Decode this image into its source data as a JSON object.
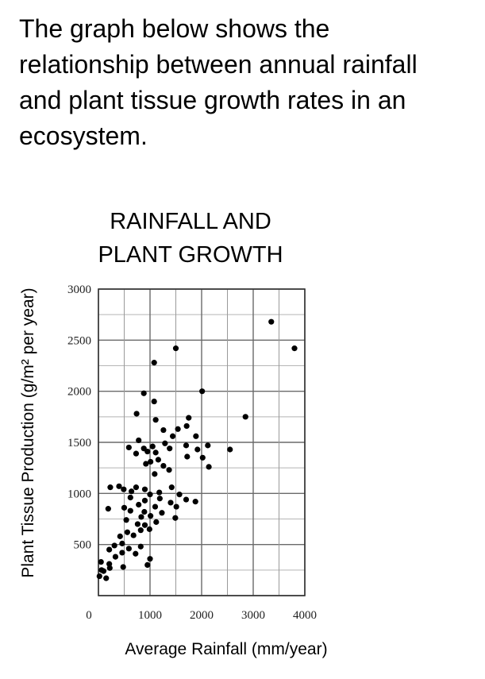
{
  "intro_text": "The graph below shows the relationship between annual rainfall and plant tissue growth rates in an ecosystem.",
  "chart_data": {
    "type": "scatter",
    "title_line1": "RAINFALL AND",
    "title_line2": "PLANT GROWTH",
    "xlabel": "Average Rainfall (mm/year)",
    "ylabel": "Plant Tissue Production (g/m² per year)",
    "xlim": [
      0,
      4000
    ],
    "ylim": [
      0,
      3000
    ],
    "x_ticks": [
      {
        "value": 0,
        "label": "0"
      },
      {
        "value": 1000,
        "label": "1000"
      },
      {
        "value": 2000,
        "label": "2000"
      },
      {
        "value": 3000,
        "label": "3000"
      },
      {
        "value": 4000,
        "label": "4000"
      }
    ],
    "y_ticks": [
      {
        "value": 500,
        "label": "500"
      },
      {
        "value": 1000,
        "label": "1000"
      },
      {
        "value": 1500,
        "label": "1500"
      },
      {
        "value": 2000,
        "label": "2000"
      },
      {
        "value": 2500,
        "label": "2500"
      },
      {
        "value": 3000,
        "label": "3000"
      }
    ],
    "grid": true,
    "dot_color": "#000000",
    "points": [
      [
        3350,
        2680
      ],
      [
        3800,
        2420
      ],
      [
        1500,
        2420
      ],
      [
        1080,
        2280
      ],
      [
        2010,
        2000
      ],
      [
        880,
        1980
      ],
      [
        1080,
        1900
      ],
      [
        2850,
        1750
      ],
      [
        740,
        1780
      ],
      [
        1750,
        1740
      ],
      [
        1110,
        1720
      ],
      [
        1260,
        1620
      ],
      [
        1540,
        1630
      ],
      [
        1710,
        1660
      ],
      [
        1890,
        1560
      ],
      [
        780,
        1520
      ],
      [
        1440,
        1560
      ],
      [
        2120,
        1470
      ],
      [
        2550,
        1430
      ],
      [
        1700,
        1470
      ],
      [
        1920,
        1430
      ],
      [
        590,
        1450
      ],
      [
        1290,
        1490
      ],
      [
        1050,
        1460
      ],
      [
        880,
        1440
      ],
      [
        1110,
        1400
      ],
      [
        1380,
        1440
      ],
      [
        950,
        1410
      ],
      [
        2020,
        1350
      ],
      [
        730,
        1390
      ],
      [
        1160,
        1330
      ],
      [
        1720,
        1360
      ],
      [
        2140,
        1260
      ],
      [
        1010,
        1310
      ],
      [
        920,
        1290
      ],
      [
        1260,
        1270
      ],
      [
        1370,
        1230
      ],
      [
        1090,
        1190
      ],
      [
        230,
        1060
      ],
      [
        400,
        1070
      ],
      [
        490,
        1040
      ],
      [
        640,
        1020
      ],
      [
        730,
        1060
      ],
      [
        900,
        1040
      ],
      [
        1180,
        1010
      ],
      [
        1000,
        990
      ],
      [
        1420,
        1060
      ],
      [
        1570,
        990
      ],
      [
        1700,
        940
      ],
      [
        1880,
        920
      ],
      [
        620,
        960
      ],
      [
        900,
        930
      ],
      [
        1190,
        950
      ],
      [
        1400,
        910
      ],
      [
        780,
        890
      ],
      [
        1100,
        870
      ],
      [
        1510,
        870
      ],
      [
        190,
        850
      ],
      [
        500,
        860
      ],
      [
        620,
        830
      ],
      [
        890,
        820
      ],
      [
        1230,
        810
      ],
      [
        1010,
        780
      ],
      [
        830,
        770
      ],
      [
        1490,
        760
      ],
      [
        540,
        740
      ],
      [
        1120,
        720
      ],
      [
        760,
        700
      ],
      [
        900,
        690
      ],
      [
        990,
        650
      ],
      [
        820,
        640
      ],
      [
        560,
        620
      ],
      [
        420,
        580
      ],
      [
        680,
        590
      ],
      [
        460,
        510
      ],
      [
        310,
        490
      ],
      [
        820,
        480
      ],
      [
        590,
        460
      ],
      [
        210,
        450
      ],
      [
        460,
        420
      ],
      [
        720,
        410
      ],
      [
        330,
        380
      ],
      [
        1000,
        360
      ],
      [
        950,
        300
      ],
      [
        50,
        330
      ],
      [
        210,
        310
      ],
      [
        480,
        280
      ],
      [
        100,
        240
      ],
      [
        20,
        190
      ],
      [
        150,
        170
      ],
      [
        60,
        250
      ],
      [
        220,
        270
      ]
    ]
  }
}
